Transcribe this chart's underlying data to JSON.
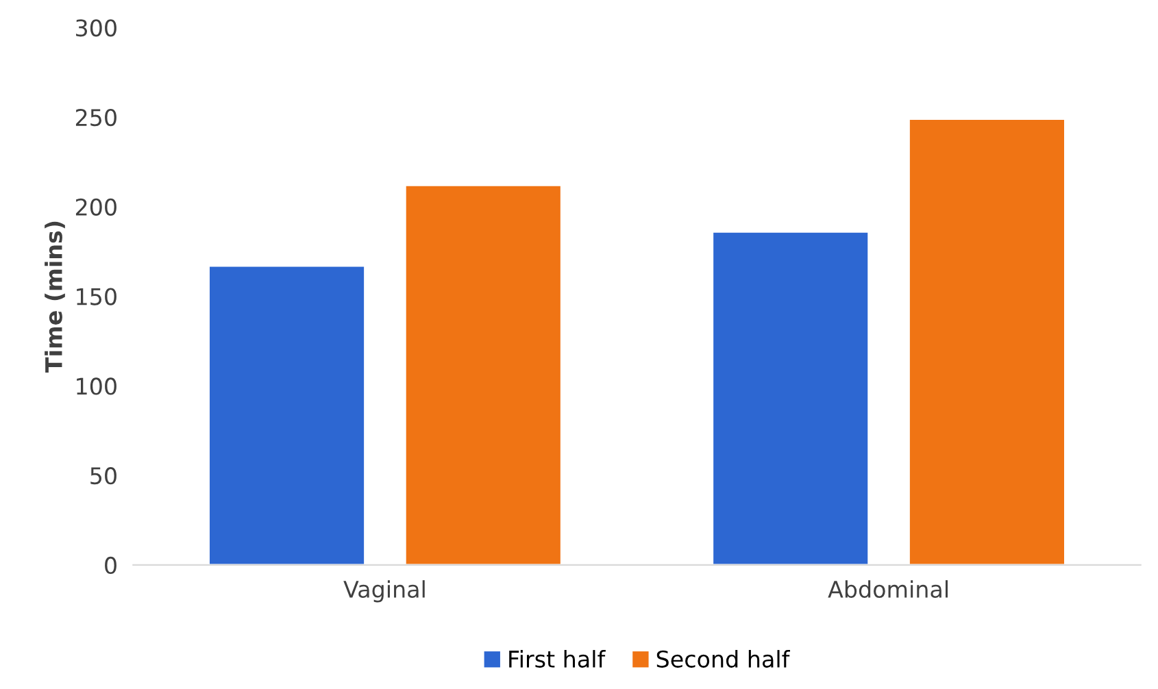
{
  "chart_data": {
    "type": "bar",
    "ylabel": "Time (mins)",
    "categories": [
      "Vaginal",
      "Abdominal"
    ],
    "series": [
      {
        "name": "First half",
        "color": "#2d67d2",
        "values": [
          167,
          186
        ]
      },
      {
        "name": "Second half",
        "color": "#f07414",
        "values": [
          212,
          249
        ]
      }
    ],
    "ylim": [
      0,
      300
    ],
    "yticks": [
      0,
      50,
      100,
      150,
      200,
      250,
      300
    ],
    "grid": false,
    "legend": "bottom"
  }
}
